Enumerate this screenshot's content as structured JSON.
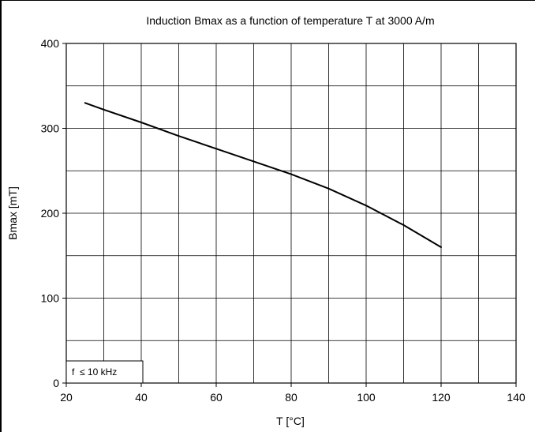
{
  "chart_data": {
    "type": "line",
    "title": "Induction Bmax as a function of temperature T at 3000 A/m",
    "xlabel": "T [°C]",
    "ylabel": "Bmax [mT]",
    "xlim": [
      20,
      140
    ],
    "ylim": [
      0,
      400
    ],
    "x_ticks": [
      20,
      40,
      60,
      80,
      100,
      120,
      140
    ],
    "y_ticks": [
      0,
      100,
      200,
      300,
      400
    ],
    "x_grid": [
      20,
      30,
      40,
      50,
      60,
      70,
      80,
      90,
      100,
      110,
      120,
      130,
      140
    ],
    "y_grid": [
      0,
      50,
      100,
      150,
      200,
      250,
      300,
      350,
      400
    ],
    "grid": true,
    "annotation": "f  ≤ 10 kHz",
    "series": [
      {
        "x": [
          25,
          30,
          40,
          50,
          60,
          70,
          80,
          90,
          100,
          110,
          120
        ],
        "y": [
          330,
          322,
          307,
          291,
          276,
          261,
          246,
          229,
          209,
          186,
          160
        ]
      }
    ],
    "colors": {
      "line": "#000000",
      "grid": "#000000",
      "background": "#ffffff"
    }
  }
}
